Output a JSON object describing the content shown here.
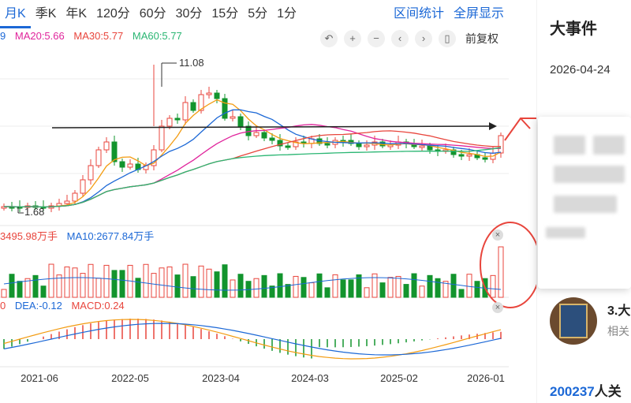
{
  "tabs": [
    {
      "label": "月K",
      "active": true
    },
    {
      "label": "季K"
    },
    {
      "label": "年K"
    },
    {
      "label": "120分"
    },
    {
      "label": "60分"
    },
    {
      "label": "30分"
    },
    {
      "label": "15分"
    },
    {
      "label": "5分"
    },
    {
      "label": "1分"
    }
  ],
  "tab_actions": {
    "range_stats": "区间统计",
    "fullscreen": "全屏显示"
  },
  "ma_legend": [
    {
      "label": "9",
      "color": "#1c68d6"
    },
    {
      "label": "MA20:5.66",
      "color": "#e0259c"
    },
    {
      "label": "MA30:5.77",
      "color": "#e8453c"
    },
    {
      "label": "MA60:5.77",
      "color": "#2bb673"
    }
  ],
  "toolbar": {
    "undo": "↶",
    "zoom_in": "+",
    "zoom_out": "−",
    "prev": "‹",
    "next": "›",
    "candle": "▯",
    "adjust_label": "前复权"
  },
  "volume_legend": [
    {
      "label": "3495.98万手",
      "color": "#e8453c"
    },
    {
      "label": "MA10:2677.84万手",
      "color": "#1c68d6"
    }
  ],
  "macd_legend": [
    {
      "label": "0",
      "color": "#e8453c"
    },
    {
      "label": "DEA:-0.12",
      "color": "#1c68d6"
    },
    {
      "label": "MACD:0.24",
      "color": "#e8453c"
    }
  ],
  "close_glyph": "×",
  "chart_data": {
    "type": "candlestick",
    "x_ticks": [
      "2021-06",
      "2022-05",
      "2023-04",
      "2024-03",
      "2025-02",
      "2026-01"
    ],
    "annotations": {
      "high": "11.08",
      "low": "1.68"
    },
    "colors": {
      "up": "#e8453c",
      "down": "#12942d",
      "ma5": "#f39c12",
      "ma10": "#1c68d6",
      "ma20": "#e0259c",
      "ma30": "#e8453c",
      "ma60": "#2bb673",
      "grid": "#eeeeee"
    }
  },
  "right_panel": {
    "title": "大事件",
    "date": "2026-04-24"
  },
  "news": {
    "title": "3.大",
    "subtitle": "相关"
  },
  "bottom_count": {
    "number": "200237",
    "text": "人关"
  }
}
